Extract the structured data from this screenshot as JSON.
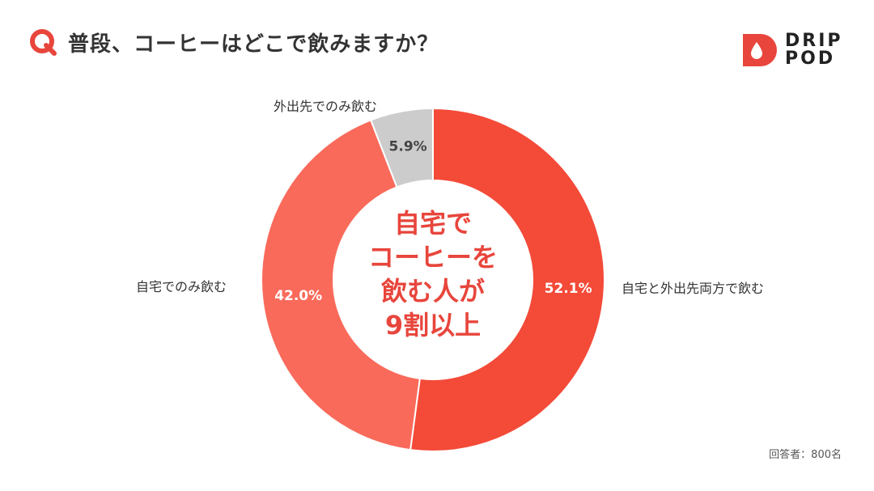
{
  "header": {
    "icon_name": "q-icon",
    "question": "普段、コーヒーはどこで飲みますか？"
  },
  "brand": {
    "line1": "DRIP",
    "line2": "POD",
    "icon_name": "drop-icon",
    "color": "#e8453c"
  },
  "chart_data": {
    "type": "pie",
    "style": "donut",
    "categories": [
      "自宅と外出先両方で飲む",
      "自宅でのみ飲む",
      "外出先でのみ飲む"
    ],
    "values": [
      52.1,
      42.0,
      5.9
    ],
    "value_labels": [
      "52.1%",
      "42.0%",
      "5.9%"
    ],
    "colors": [
      "#f44a38",
      "#f96a5a",
      "#cccccc"
    ],
    "center_label": [
      "自宅で",
      "コーヒーを",
      "飲む人が",
      "9割以上"
    ]
  },
  "footnote": "回答者：800名"
}
